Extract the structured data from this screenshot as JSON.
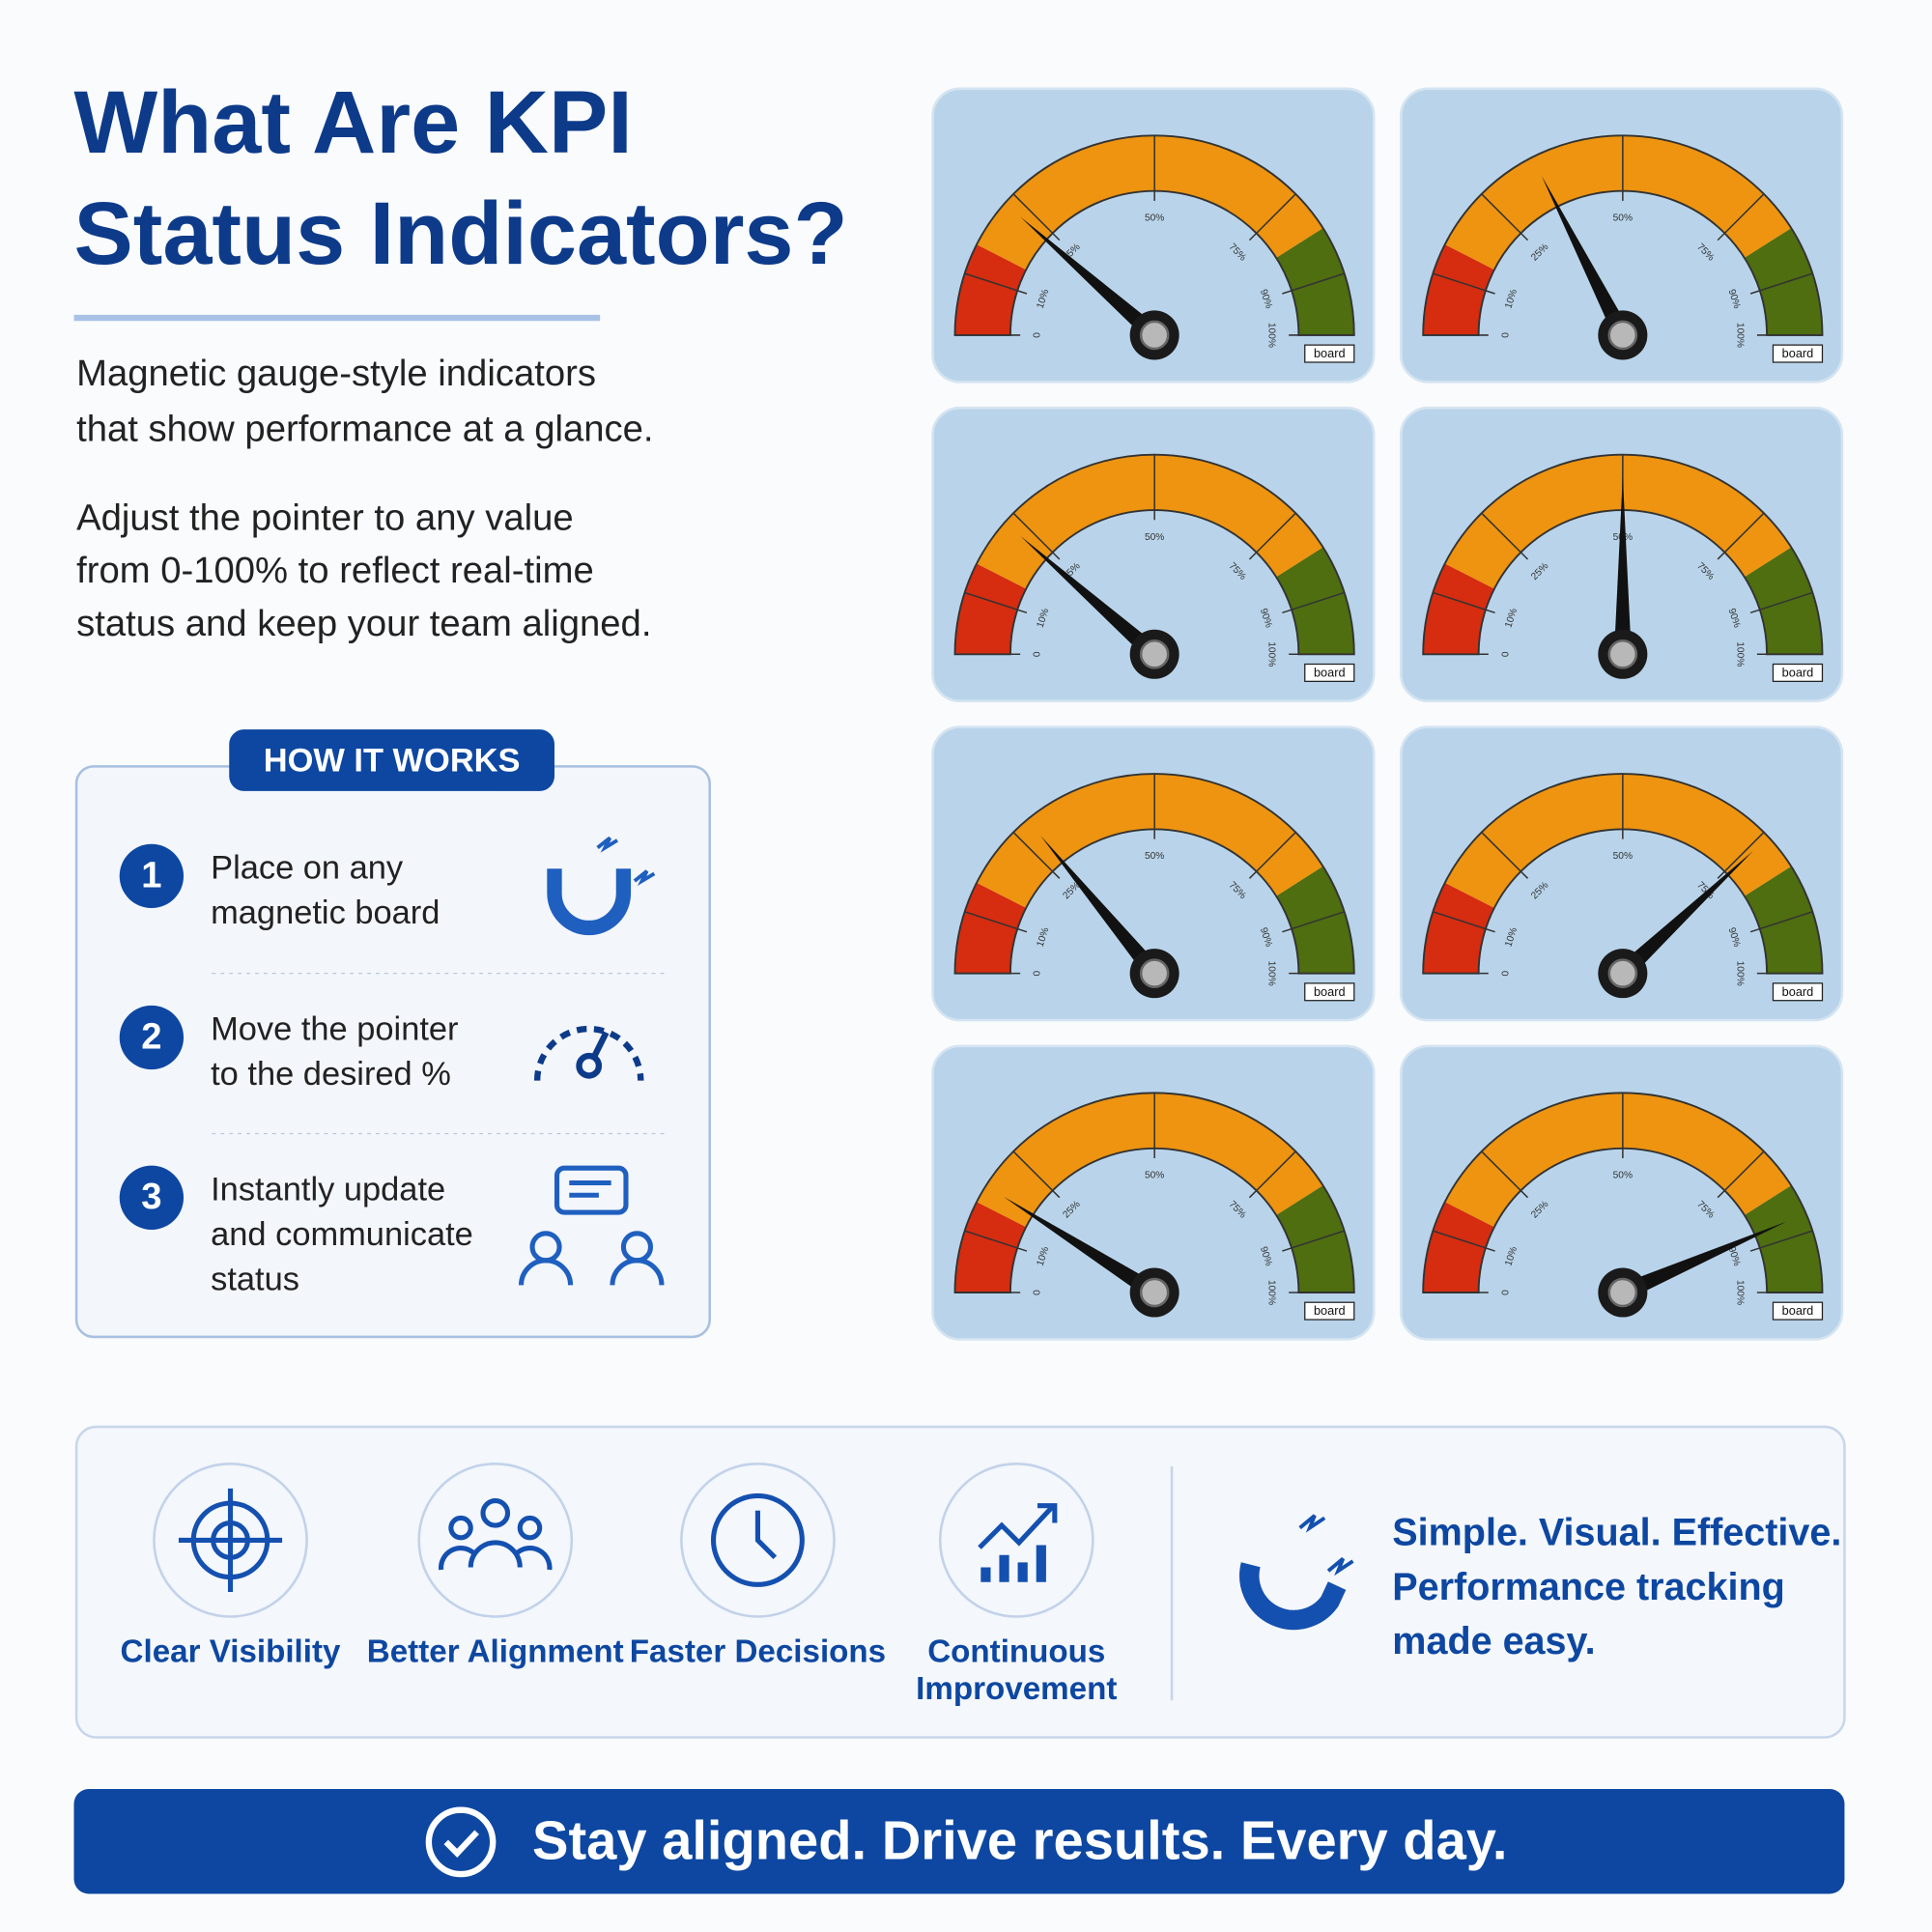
{
  "header": {
    "title": [
      "What Are KPI",
      "Status Indicators?"
    ]
  },
  "intro": {
    "lead": [
      "Magnetic gauge-style indicators",
      "that show performance at a glance."
    ],
    "detail": [
      "Adjust the pointer to any value",
      "from 0-100% to reflect real-time",
      "status and keep your team aligned."
    ]
  },
  "how_it_works": {
    "title": "HOW IT WORKS",
    "steps": [
      {
        "number": 1,
        "lines": [
          "Place on any",
          "magnetic board"
        ]
      },
      {
        "number": 2,
        "lines": [
          "Move the pointer",
          "to the desired %"
        ]
      },
      {
        "number": 3,
        "lines": [
          "Instantly update",
          "and communicate",
          "status"
        ]
      }
    ]
  },
  "gauges": {
    "brand": "board",
    "scale_ticks": [
      {
        "value": 0,
        "label": "0"
      },
      {
        "value": 10,
        "label": "10%"
      },
      {
        "value": 25,
        "label": "25%"
      },
      {
        "value": 50,
        "label": "50%"
      },
      {
        "value": 75,
        "label": "75%"
      },
      {
        "value": 90,
        "label": "90%"
      },
      {
        "value": 100,
        "label": "100%"
      }
    ],
    "zones": [
      {
        "from": 0,
        "to": 15,
        "color": "#d62c10"
      },
      {
        "from": 15,
        "to": 82,
        "color": "#ee9410"
      },
      {
        "from": 82,
        "to": 100,
        "color": "#4e6e10"
      }
    ],
    "values": [
      23,
      35,
      23,
      50,
      28,
      76,
      18,
      87
    ]
  },
  "benefits": [
    {
      "lines": [
        "Clear Visibility"
      ]
    },
    {
      "lines": [
        "Better Alignment"
      ]
    },
    {
      "lines": [
        "Faster Decisions"
      ]
    },
    {
      "lines": [
        "Continuous",
        "Improvement"
      ]
    }
  ],
  "tagline": [
    "Simple. Visual. Effective.",
    "Performance tracking",
    "made easy."
  ],
  "banner": "Stay aligned. Drive results. Every day."
}
